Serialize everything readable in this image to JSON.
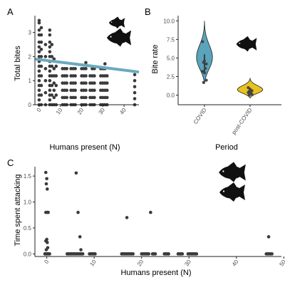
{
  "chart_data": [
    {
      "panel": "A",
      "type": "scatter",
      "xlabel": "Humans present (N)",
      "ylabel": "Total bites",
      "xticks": [
        "0",
        "10",
        "20",
        "30",
        "40"
      ],
      "yticks": [
        "0",
        "1",
        "2",
        "3"
      ],
      "xlim": [
        -2,
        47
      ],
      "ylim": [
        0,
        3.7
      ],
      "fish_icons": [
        "fish-silhouette",
        "fish-silhouette"
      ],
      "trendline": {
        "color": "#6aa9bd",
        "x": [
          -2,
          47
        ],
        "y": [
          1.9,
          1.36
        ]
      },
      "points": [
        [
          0,
          0
        ],
        [
          0,
          0.2
        ],
        [
          0,
          0.4
        ],
        [
          0,
          0.6
        ],
        [
          0,
          0.8
        ],
        [
          0,
          1.0
        ],
        [
          0,
          1.2
        ],
        [
          0,
          1.4
        ],
        [
          0,
          1.6
        ],
        [
          0,
          1.8
        ],
        [
          0,
          2.0
        ],
        [
          0,
          2.2
        ],
        [
          0,
          2.4
        ],
        [
          0,
          2.6
        ],
        [
          0,
          2.9
        ],
        [
          0,
          3.1
        ],
        [
          0,
          3.4
        ],
        [
          0,
          3.5
        ],
        [
          1,
          0
        ],
        [
          1,
          0.4
        ],
        [
          1,
          0.8
        ],
        [
          1,
          1.2
        ],
        [
          1,
          1.6
        ],
        [
          1,
          2.0
        ],
        [
          1,
          2.3
        ],
        [
          1,
          2.6
        ],
        [
          1,
          2.9
        ],
        [
          1,
          3.2
        ],
        [
          3,
          0
        ],
        [
          3,
          0.5
        ],
        [
          3,
          1.0
        ],
        [
          3,
          1.5
        ],
        [
          3,
          2.0
        ],
        [
          3,
          2.5
        ],
        [
          5,
          0
        ],
        [
          5,
          0.2
        ],
        [
          5,
          0.4
        ],
        [
          5,
          0.6
        ],
        [
          5,
          0.8
        ],
        [
          5,
          1.0
        ],
        [
          5,
          1.2
        ],
        [
          5,
          1.4
        ],
        [
          5,
          1.6
        ],
        [
          5,
          1.8
        ],
        [
          5,
          2.0
        ],
        [
          5,
          2.2
        ],
        [
          5,
          2.4
        ],
        [
          5,
          2.6
        ],
        [
          5,
          2.9
        ],
        [
          5,
          3.1
        ],
        [
          6,
          0
        ],
        [
          6,
          0.4
        ],
        [
          6,
          0.8
        ],
        [
          6,
          1.2
        ],
        [
          6,
          1.6
        ],
        [
          6,
          2.0
        ],
        [
          6,
          2.5
        ],
        [
          7,
          0
        ],
        [
          7,
          0.3
        ],
        [
          7,
          0.6
        ],
        [
          7,
          0.9
        ],
        [
          7,
          1.2
        ],
        [
          7,
          1.5
        ],
        [
          7,
          1.9
        ],
        [
          8,
          0
        ],
        [
          8,
          0.4
        ],
        [
          8,
          0.8
        ],
        [
          8,
          1.2
        ],
        [
          8,
          1.6
        ],
        [
          11,
          0
        ],
        [
          11,
          0.3
        ],
        [
          11,
          0.6
        ],
        [
          11,
          0.9
        ],
        [
          11,
          1.2
        ],
        [
          11,
          1.5
        ],
        [
          12,
          0
        ],
        [
          12,
          0.3
        ],
        [
          12,
          0.6
        ],
        [
          12,
          0.9
        ],
        [
          12,
          1.2
        ],
        [
          12,
          1.5
        ],
        [
          13,
          0
        ],
        [
          13,
          0.3
        ],
        [
          13,
          0.6
        ],
        [
          13,
          0.9
        ],
        [
          13,
          1.2
        ],
        [
          13,
          1.5
        ],
        [
          15,
          0
        ],
        [
          15,
          0.3
        ],
        [
          15,
          0.6
        ],
        [
          15,
          0.9
        ],
        [
          15,
          1.2
        ],
        [
          15,
          1.5
        ],
        [
          16,
          0
        ],
        [
          16,
          0.3
        ],
        [
          16,
          0.6
        ],
        [
          16,
          0.9
        ],
        [
          16,
          1.2
        ],
        [
          16,
          1.5
        ],
        [
          17,
          0
        ],
        [
          17,
          0.3
        ],
        [
          17,
          0.6
        ],
        [
          17,
          0.9
        ],
        [
          17,
          1.2
        ],
        [
          17,
          1.5
        ],
        [
          20,
          0
        ],
        [
          20,
          0.3
        ],
        [
          20,
          0.6
        ],
        [
          20,
          0.9
        ],
        [
          20,
          1.2
        ],
        [
          20,
          1.5
        ],
        [
          21,
          0
        ],
        [
          21,
          0.3
        ],
        [
          21,
          0.6
        ],
        [
          21,
          0.9
        ],
        [
          21,
          1.2
        ],
        [
          21,
          1.5
        ],
        [
          22,
          0
        ],
        [
          22,
          0.3
        ],
        [
          22,
          0.6
        ],
        [
          22,
          0.9
        ],
        [
          22,
          1.2
        ],
        [
          22,
          1.5
        ],
        [
          22,
          1.75
        ],
        [
          24,
          0
        ],
        [
          24,
          0.3
        ],
        [
          24,
          0.6
        ],
        [
          24,
          0.9
        ],
        [
          24,
          1.2
        ],
        [
          25,
          0
        ],
        [
          25,
          0.3
        ],
        [
          25,
          0.6
        ],
        [
          25,
          0.9
        ],
        [
          25,
          1.2
        ],
        [
          25,
          1.5
        ],
        [
          26,
          0
        ],
        [
          26,
          0.3
        ],
        [
          26,
          0.6
        ],
        [
          26,
          0.9
        ],
        [
          26,
          1.2
        ],
        [
          26,
          1.5
        ],
        [
          29,
          0
        ],
        [
          29,
          0.3
        ],
        [
          29,
          0.6
        ],
        [
          29,
          0.9
        ],
        [
          29,
          1.2
        ],
        [
          29,
          1.5
        ],
        [
          30,
          0
        ],
        [
          30,
          0.3
        ],
        [
          30,
          0.6
        ],
        [
          30,
          0.9
        ],
        [
          30,
          1.2
        ],
        [
          30,
          1.5
        ],
        [
          31,
          0
        ],
        [
          31,
          0.3
        ],
        [
          31,
          0.6
        ],
        [
          31,
          0.9
        ],
        [
          31,
          1.2
        ],
        [
          31,
          1.5
        ],
        [
          31,
          1.7
        ],
        [
          32,
          0
        ],
        [
          32,
          0.3
        ],
        [
          32,
          0.6
        ],
        [
          32,
          0.9
        ],
        [
          32,
          1.2
        ],
        [
          45,
          0
        ],
        [
          45,
          0.25
        ],
        [
          45,
          0.5
        ],
        [
          45,
          0.75
        ],
        [
          45,
          1.0
        ],
        [
          45,
          1.25
        ]
      ]
    },
    {
      "panel": "B",
      "type": "violin",
      "xlabel": "Period",
      "ylabel": "Bite rate",
      "categories": [
        "COVID",
        "post-COVID"
      ],
      "yticks": [
        "0.0",
        "2.5",
        "5.0",
        "7.5",
        "10.0"
      ],
      "ylim": [
        -1.3,
        10.7
      ],
      "colors": [
        "#5aa4bc",
        "#e8c21e"
      ],
      "fish_icons": [
        "fish-silhouette"
      ],
      "violins": [
        {
          "category": "COVID",
          "color": "#5aa4bc",
          "min": 1.5,
          "max": 10.0,
          "median": 4.5,
          "q1": 3.0,
          "q3": 5.5,
          "points": [
            7.2,
            4.6,
            4.2,
            4.4,
            3.6,
            3.2,
            3.0,
            2.0,
            1.7
          ]
        },
        {
          "category": "post-COVID",
          "color": "#e8c21e",
          "min": -0.4,
          "max": 2.3,
          "median": 0.45,
          "q1": 0.25,
          "q3": 0.8,
          "points": [
            1.0,
            0.8,
            0.6,
            0.5,
            0.4,
            0.35,
            0.2,
            0.1,
            0.0
          ]
        }
      ]
    },
    {
      "panel": "C",
      "type": "scatter",
      "xlabel": "Humans present (N)",
      "ylabel": "Time spent attacking",
      "xticks": [
        "0",
        "10",
        "20",
        "30",
        "40",
        "50"
      ],
      "yticks": [
        "0.0",
        "0.5",
        "1.0",
        "1.5"
      ],
      "xlim": [
        -2.5,
        49.5
      ],
      "ylim": [
        -0.05,
        1.68
      ],
      "fish_icons": [
        "fish-silhouette",
        "fish-silhouette"
      ],
      "points": [
        [
          -0.2,
          1.57
        ],
        [
          0,
          1.45
        ],
        [
          -0.1,
          1.35
        ],
        [
          0.1,
          1.25
        ],
        [
          -0.2,
          0.8
        ],
        [
          0.2,
          0.8
        ],
        [
          0.3,
          0.8
        ],
        [
          0,
          0.28
        ],
        [
          -0.2,
          0.25
        ],
        [
          0.1,
          0.22
        ],
        [
          0.2,
          0.12
        ],
        [
          -0.1,
          0.08
        ],
        [
          -0.4,
          0
        ],
        [
          -0.2,
          0
        ],
        [
          0,
          0
        ],
        [
          0.2,
          0
        ],
        [
          0.4,
          0
        ],
        [
          0.6,
          0
        ],
        [
          6.2,
          1.56
        ],
        [
          6.6,
          0.8
        ],
        [
          7.0,
          0.33
        ],
        [
          7.2,
          0.08
        ],
        [
          4.3,
          0
        ],
        [
          4.6,
          0
        ],
        [
          4.9,
          0
        ],
        [
          5.2,
          0
        ],
        [
          5.5,
          0
        ],
        [
          5.8,
          0
        ],
        [
          6.1,
          0
        ],
        [
          6.4,
          0
        ],
        [
          6.7,
          0
        ],
        [
          7.0,
          0
        ],
        [
          7.3,
          0
        ],
        [
          7.6,
          0
        ],
        [
          9.0,
          0
        ],
        [
          9.3,
          0
        ],
        [
          9.6,
          0
        ],
        [
          9.9,
          0
        ],
        [
          10.2,
          0
        ],
        [
          16.9,
          0.7
        ],
        [
          21.9,
          0.8
        ],
        [
          15.8,
          0
        ],
        [
          16.1,
          0
        ],
        [
          16.4,
          0
        ],
        [
          16.7,
          0
        ],
        [
          17.0,
          0
        ],
        [
          17.3,
          0
        ],
        [
          17.6,
          0
        ],
        [
          17.9,
          0
        ],
        [
          18.2,
          0
        ],
        [
          20.0,
          0
        ],
        [
          20.3,
          0
        ],
        [
          20.6,
          0
        ],
        [
          20.9,
          0
        ],
        [
          21.2,
          0
        ],
        [
          21.5,
          0
        ],
        [
          22.3,
          0
        ],
        [
          22.6,
          0
        ],
        [
          22.9,
          0
        ],
        [
          24.8,
          0
        ],
        [
          25.1,
          0
        ],
        [
          25.4,
          0
        ],
        [
          25.7,
          0
        ],
        [
          27.7,
          0
        ],
        [
          28.0,
          0
        ],
        [
          28.3,
          0
        ],
        [
          28.6,
          0
        ],
        [
          29.8,
          0
        ],
        [
          30.1,
          0
        ],
        [
          30.4,
          0
        ],
        [
          30.7,
          0
        ],
        [
          31.0,
          0
        ],
        [
          31.3,
          0
        ],
        [
          31.6,
          0
        ],
        [
          46.8,
          0.33
        ],
        [
          46.3,
          0
        ],
        [
          46.6,
          0
        ],
        [
          46.9,
          0
        ],
        [
          47.2,
          0
        ],
        [
          47.5,
          0
        ]
      ]
    }
  ],
  "panels": {
    "A": {
      "label": "A"
    },
    "B": {
      "label": "B"
    },
    "C": {
      "label": "C"
    }
  }
}
